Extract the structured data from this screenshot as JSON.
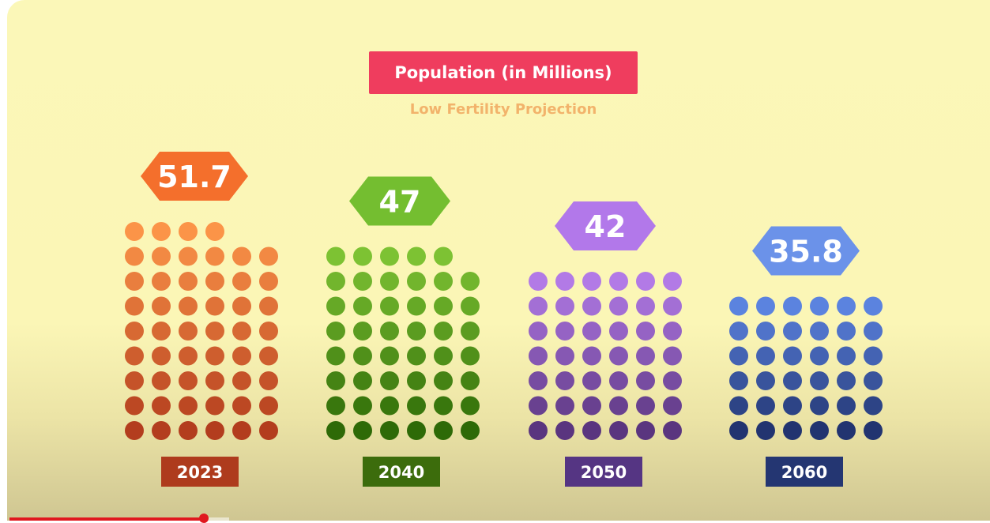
{
  "chart_data": {
    "type": "pictogram",
    "title": "Population (in Millions)",
    "subtitle": "Low Fertility Projection",
    "categories": [
      "2023",
      "2040",
      "2050",
      "2060"
    ],
    "values": [
      51.7,
      47,
      42,
      35.8
    ],
    "value_labels": [
      "51.7",
      "47",
      "42",
      "35.8"
    ],
    "dot_counts": [
      52,
      47,
      42,
      36
    ],
    "columns_per_group": 6,
    "colors": {
      "2023": {
        "top": "#fb9448",
        "bottom": "#b33d1e",
        "badge": "#f46f2c",
        "year_box": "#ae3b1d"
      },
      "2040": {
        "top": "#7dc233",
        "bottom": "#2e6a07",
        "badge": "#74be30",
        "year_box": "#3c6c0c"
      },
      "2050": {
        "top": "#b27ae6",
        "bottom": "#5a357f",
        "badge": "#b278ea",
        "year_box": "#553583"
      },
      "2060": {
        "top": "#5b83df",
        "bottom": "#223470",
        "badge": "#6b92e9",
        "year_box": "#243672"
      }
    }
  },
  "video": {
    "progress_fraction": 0.2,
    "progress_color": "#e0181f"
  }
}
